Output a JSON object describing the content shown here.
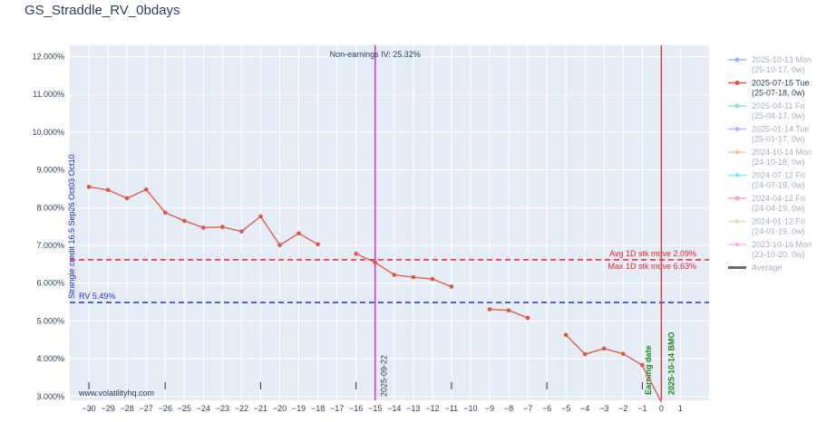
{
  "chart_data": {
    "type": "line",
    "title": "GS_Straddle_RV_0bdays",
    "xlabel": "",
    "ylabel": "",
    "xlim": [
      -31,
      2.5
    ],
    "ylim": [
      2.9,
      12.3
    ],
    "x_ticks": [
      -30,
      -29,
      -28,
      -27,
      -26,
      -25,
      -24,
      -23,
      -22,
      -21,
      -20,
      -19,
      -18,
      -17,
      -16,
      -15,
      -14,
      -13,
      -12,
      -11,
      -10,
      -9,
      -8,
      -7,
      -6,
      -5,
      -4,
      -3,
      -2,
      -1,
      0,
      1
    ],
    "y_ticks": [
      3,
      4,
      5,
      6,
      7,
      8,
      9,
      10,
      11,
      12
    ],
    "y_tick_labels": [
      "3.000%",
      "4.000%",
      "5.000%",
      "6.000%",
      "7.000%",
      "8.000%",
      "9.000%",
      "10.000%",
      "11.000%",
      "12.000%"
    ],
    "grid": true,
    "legend_position": "right",
    "series": [
      {
        "name": "2025-07-15 Tue",
        "sub": "(25-07-18, 0w)",
        "color": "#e2553f",
        "segments": [
          [
            [
              -30,
              8.55
            ],
            [
              -29,
              8.47
            ],
            [
              -28,
              8.25
            ],
            [
              -27,
              8.48
            ],
            [
              -26,
              7.87
            ],
            [
              -25,
              7.65
            ],
            [
              -24,
              7.47
            ],
            [
              -23,
              7.49
            ],
            [
              -22,
              7.37
            ],
            [
              -21,
              7.77
            ],
            [
              -20,
              7.01
            ],
            [
              -19,
              7.32
            ],
            [
              -18,
              7.03
            ]
          ],
          [
            [
              -16,
              6.78
            ],
            [
              -15,
              6.55
            ],
            [
              -14,
              6.22
            ],
            [
              -13,
              6.16
            ],
            [
              -12,
              6.11
            ],
            [
              -11,
              5.91
            ]
          ],
          [
            [
              -9,
              5.31
            ],
            [
              -8,
              5.28
            ],
            [
              -7,
              5.08
            ]
          ],
          [
            [
              -5,
              4.63
            ],
            [
              -4,
              4.12
            ],
            [
              -3,
              4.27
            ],
            [
              -2,
              4.13
            ],
            [
              -1,
              3.83
            ],
            [
              0,
              2.85
            ]
          ]
        ]
      }
    ],
    "legend_entries": [
      {
        "name": "2025-10-13 Mon",
        "sub": "(25-10-17, 0w)",
        "color": "#a6b4ef",
        "active": false
      },
      {
        "name": "2025-07-15 Tue",
        "sub": "(25-07-18, 0w)",
        "color": "#e2553f",
        "active": true
      },
      {
        "name": "2025-04-11 Fri",
        "sub": "(25-04-17, 0w)",
        "color": "#8fe3c4",
        "active": false
      },
      {
        "name": "2025-01-14 Tue",
        "sub": "(25-01-17, 0w)",
        "color": "#cfaef7",
        "active": false
      },
      {
        "name": "2024-10-14 Mon",
        "sub": "(24-10-18, 0w)",
        "color": "#fcc9a4",
        "active": false
      },
      {
        "name": "2024-07-12 Fri",
        "sub": "(24-07-19, 0w)",
        "color": "#8ee8ef",
        "active": false
      },
      {
        "name": "2024-04-12 Fri",
        "sub": "(24-04-19, 0w)",
        "color": "#f6a7bd",
        "active": false
      },
      {
        "name": "2024-01-12 Fri",
        "sub": "(24-01-19, 0w)",
        "color": "#cfe9b4",
        "active": false
      },
      {
        "name": "2023-10-16 Mon",
        "sub": "(23-10-20, 0w)",
        "color": "#fbb7ef",
        "active": false
      },
      {
        "name": "Average",
        "sub": "",
        "color": "#6b6b6b",
        "active": false,
        "thick": true
      }
    ],
    "reference_lines": {
      "avg_move": {
        "y": 6.62,
        "color": "#e8252b",
        "label": "Avg 1D stk move 2.09%",
        "label2": "Max 1D stk move 6.63%"
      },
      "rv": {
        "y": 5.49,
        "color": "#1f33d6",
        "label": "RV 5.49%"
      },
      "marker_line": {
        "x": -15,
        "color": "#d62fd6",
        "label": "2025-09-22",
        "top_label": "Non-earnings IV: 25.32%"
      },
      "earnings_line": {
        "x": 0,
        "color": "#c8463e",
        "label": "2025-10-14 BMO",
        "label_color": "#1a8a1a"
      },
      "earnings_date": {
        "x": -0.4,
        "label": "Earning date",
        "color": "#1a8a1a"
      }
    },
    "vertical_annotation": {
      "label": "Strangle credit 16.5 Sep26 Oct03 Oct10",
      "color": "#1f33d6"
    },
    "x_minor_ticks": [
      -30,
      -26,
      -21,
      -16,
      -15,
      -11,
      -6,
      -1
    ],
    "watermark": "www.volatilityhq.com"
  }
}
